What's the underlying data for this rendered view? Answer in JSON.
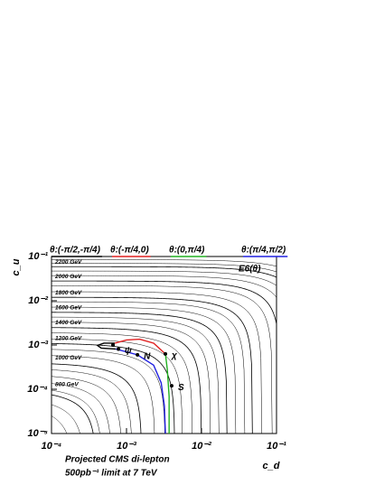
{
  "chart_data": {
    "type": "contour",
    "x_label": "c_d",
    "y_label": "c_u",
    "annotation": "E6(θ)",
    "footnote": [
      "Projected  CMS  di-lepton",
      "500pb⁻¹ limit at 7 TeV"
    ],
    "log_x": true,
    "log_y": true,
    "xlim": [
      0.0001,
      0.1
    ],
    "ylim": [
      1e-05,
      0.1
    ],
    "xticks": [
      {
        "value": 0.0001,
        "label": "10⁻⁴"
      },
      {
        "value": 0.001,
        "label": "10⁻³"
      },
      {
        "value": 0.01,
        "label": "10⁻²"
      },
      {
        "value": 0.1,
        "label": "10⁻¹"
      }
    ],
    "yticks": [
      {
        "value": 1e-05,
        "label": "10⁻⁵"
      },
      {
        "value": 0.0001,
        "label": "10⁻⁴"
      },
      {
        "value": 0.001,
        "label": "10⁻³"
      },
      {
        "value": 0.01,
        "label": "10⁻²"
      },
      {
        "value": 0.1,
        "label": "10⁻¹"
      }
    ],
    "contours": [
      {
        "cu": 0.085,
        "cd": 0.34
      },
      {
        "cu": 0.07,
        "cd": 0.28
      },
      {
        "cu": 0.059,
        "cd": 0.236,
        "label": "2200 GeV"
      },
      {
        "cu": 0.047,
        "cd": 0.188
      },
      {
        "cu": 0.037,
        "cd": 0.148
      },
      {
        "cu": 0.028,
        "cd": 0.112,
        "label": "2000 GeV"
      },
      {
        "cu": 0.022,
        "cd": 0.088
      },
      {
        "cu": 0.016,
        "cd": 0.064
      },
      {
        "cu": 0.012,
        "cd": 0.048,
        "label": "1800 GeV"
      },
      {
        "cu": 0.0095,
        "cd": 0.038
      },
      {
        "cu": 0.0072,
        "cd": 0.0288
      },
      {
        "cu": 0.0055,
        "cd": 0.022,
        "label": "1600 GeV"
      },
      {
        "cu": 0.0043,
        "cd": 0.0172
      },
      {
        "cu": 0.0033,
        "cd": 0.0132
      },
      {
        "cu": 0.0025,
        "cd": 0.01,
        "label": "1400 GeV"
      },
      {
        "cu": 0.0019,
        "cd": 0.0076
      },
      {
        "cu": 0.0014,
        "cd": 0.0056
      },
      {
        "cu": 0.0011,
        "cd": 0.0044,
        "label": "1200 GeV"
      },
      {
        "cu": 0.00082,
        "cd": 0.00328
      },
      {
        "cu": 0.0006,
        "cd": 0.0024
      },
      {
        "cu": 0.0004,
        "cd": 0.0016,
        "label": "1000 GeV"
      },
      {
        "cu": 0.0003,
        "cd": 0.0012
      },
      {
        "cu": 0.00022,
        "cd": 0.00088
      },
      {
        "cu": 0.00016,
        "cd": 0.00064
      },
      {
        "cu": 0.00012,
        "cd": 0.00048
      },
      {
        "cu": 0.0001,
        "cd": 0.0004,
        "label": "800 GeV"
      },
      {
        "cu": 7e-05,
        "cd": 0.00028
      },
      {
        "cu": 5e-05,
        "cd": 0.0002
      },
      {
        "cu": 3.5e-05,
        "cd": 0.00014
      },
      {
        "cu": 2.5e-05,
        "cd": 0.0001
      },
      {
        "cu": 1.8e-05,
        "cd": 7.2e-05
      },
      {
        "cu": 1.3e-05,
        "cd": 5.2e-05
      }
    ],
    "series": [
      {
        "name": "θ:(-π/2,-π/4)",
        "color": "#000000",
        "x": [
          0.00072,
          0.00046,
          0.00041,
          0.0005,
          0.0007
        ],
        "y": [
          0.00081,
          0.00085,
          0.00098,
          0.0011,
          0.0011
        ]
      },
      {
        "name": "θ:(-π/4,0)",
        "color": "#e02020",
        "x": [
          0.0007,
          0.001,
          0.0015,
          0.0023,
          0.0033
        ],
        "y": [
          0.0011,
          0.0013,
          0.00135,
          0.0011,
          0.00063
        ]
      },
      {
        "name": "θ:(0,π/4)",
        "color": "#20b020",
        "x": [
          0.0033,
          0.0035,
          0.0037,
          0.0037
        ],
        "y": [
          0.00063,
          0.00028,
          6.8e-05,
          1e-05
        ]
      },
      {
        "name": "θ:(π/4,π/2)",
        "color": "#2020e0",
        "x": [
          0.00072,
          0.0014,
          0.0023,
          0.0029,
          0.0032,
          0.0033
        ],
        "y": [
          0.00081,
          0.0006,
          0.00035,
          0.00014,
          4.2e-05,
          1e-05
        ]
      }
    ],
    "points": [
      {
        "label": null,
        "x": 0.00066,
        "y": 0.001
      },
      {
        "label": "ψ",
        "x": 0.00078,
        "y": 0.00081
      },
      {
        "label": "N",
        "x": 0.0014,
        "y": 0.0006
      },
      {
        "label": "χ",
        "x": 0.0033,
        "y": 0.00063
      },
      {
        "label": "S",
        "x": 0.004,
        "y": 0.00012
      }
    ]
  }
}
